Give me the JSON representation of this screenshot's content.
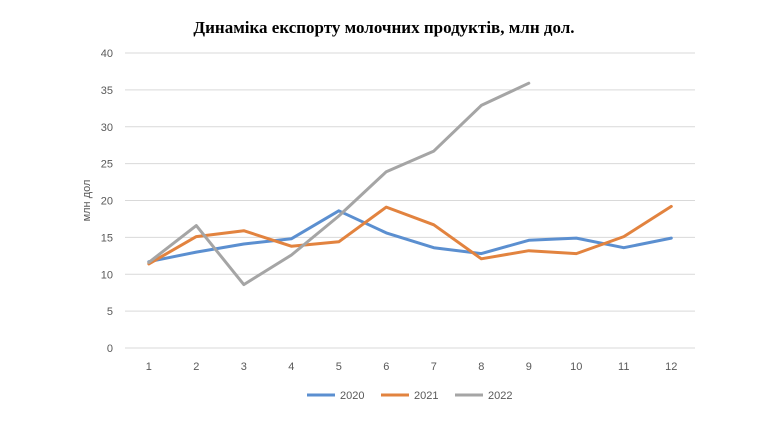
{
  "chart_data": {
    "type": "line",
    "title": "Динаміка експорту молочних продуктів, млн дол.",
    "xlabel": "",
    "ylabel": "млн дол",
    "categories": [
      "1",
      "2",
      "3",
      "4",
      "5",
      "6",
      "7",
      "8",
      "9",
      "10",
      "11",
      "12"
    ],
    "ylim": [
      0,
      40
    ],
    "yticks": [
      0,
      5,
      10,
      15,
      20,
      25,
      30,
      35,
      40
    ],
    "grid": true,
    "legend_position": "bottom",
    "series": [
      {
        "name": "2020",
        "color": "#5B8FD0",
        "values": [
          11.7,
          13.0,
          14.1,
          14.8,
          18.6,
          15.6,
          13.6,
          12.8,
          14.6,
          14.9,
          13.6,
          14.9
        ]
      },
      {
        "name": "2021",
        "color": "#E2833F",
        "values": [
          11.4,
          15.1,
          15.9,
          13.8,
          14.4,
          19.1,
          16.7,
          12.1,
          13.2,
          12.8,
          15.1,
          19.2
        ]
      },
      {
        "name": "2022",
        "color": "#A5A5A5",
        "values": [
          11.6,
          16.6,
          8.6,
          12.6,
          17.9,
          23.9,
          26.7,
          32.9,
          35.9,
          null,
          null,
          null
        ]
      }
    ]
  }
}
